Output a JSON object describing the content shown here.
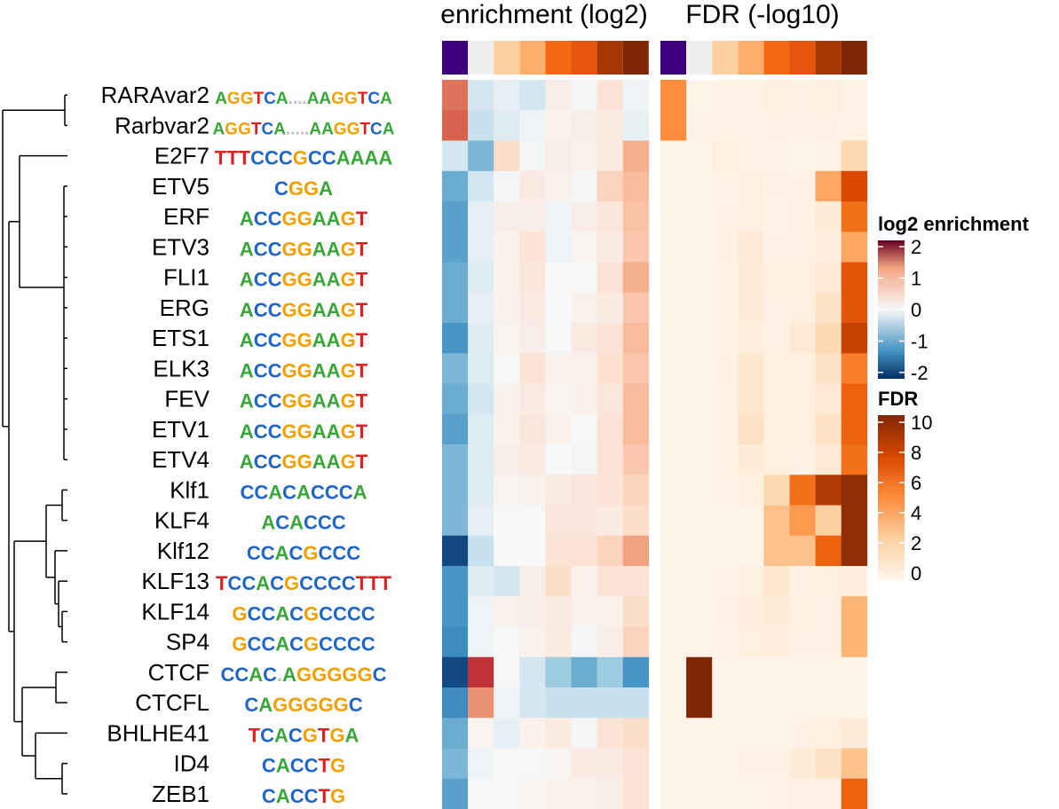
{
  "chart_data": {
    "type": "heatmap",
    "rows": [
      "RARAvar2",
      "Rarbvar2",
      "E2F7",
      "ETV5",
      "ERF",
      "ETV3",
      "FLI1",
      "ERG",
      "ETS1",
      "ELK3",
      "FEV",
      "ETV1",
      "ETV4",
      "Klf1",
      "KLF4",
      "Klf12",
      "KLF13",
      "KLF14",
      "SP4",
      "CTCF",
      "CTCFL",
      "BHLHE41",
      "ID4",
      "ZEB1"
    ],
    "motif_logos": [
      "AGGTCA....AAGGTCA",
      "AGGTCA.....AAGGTCA",
      "TTTCCCGCCAAAA",
      "CGGA",
      "ACCGGAAGT",
      "ACCGGAAGT",
      "ACCGGAAGT",
      "ACCGGAAGT",
      "ACCGGAAGT",
      "ACCGGAAGT",
      "ACCGGAAGT",
      "ACCGGAAGT",
      "ACCGGAAGT",
      "CCACACCCA",
      "ACACCC",
      "CCACGCCC",
      "TCCACGCCCCTTT",
      "GCCACGCCCC",
      "GCCACGCCCC",
      "CCAC.AGGGGGC",
      "CAGGGGGC",
      "TCACGTGA",
      "CACCTG",
      "CACCTG"
    ],
    "panels": [
      {
        "title": "enrichment (log2)",
        "columns": 8,
        "annotation_values": [
          -2,
          0,
          1,
          2,
          3,
          4,
          5,
          6
        ],
        "values": [
          [
            1.2,
            -0.4,
            -0.2,
            -0.4,
            0.15,
            -0.05,
            0.3,
            -0.1
          ],
          [
            1.3,
            -0.5,
            -0.3,
            -0.1,
            0.1,
            0.15,
            0.2,
            -0.15
          ],
          [
            -0.4,
            -1.0,
            0.4,
            -0.05,
            0.15,
            0.1,
            0.2,
            0.8
          ],
          [
            -1.1,
            -0.4,
            -0.05,
            0.2,
            0.1,
            -0.05,
            0.5,
            0.7
          ],
          [
            -1.2,
            -0.2,
            0.15,
            0.15,
            -0.1,
            0.15,
            0.25,
            0.65
          ],
          [
            -1.2,
            -0.2,
            0.1,
            0.3,
            -0.1,
            0.05,
            0.2,
            0.6
          ],
          [
            -1.1,
            -0.3,
            0.1,
            0.25,
            0.0,
            0.0,
            0.3,
            0.8
          ],
          [
            -1.1,
            -0.2,
            0.1,
            0.2,
            0.0,
            0.1,
            0.2,
            0.6
          ],
          [
            -1.3,
            -0.3,
            0.05,
            0.15,
            0.0,
            0.2,
            0.3,
            0.7
          ],
          [
            -1.0,
            -0.3,
            0.0,
            0.3,
            0.1,
            0.1,
            0.35,
            0.6
          ],
          [
            -1.1,
            -0.4,
            0.1,
            0.2,
            0.05,
            0.1,
            0.25,
            0.7
          ],
          [
            -1.2,
            -0.3,
            0.1,
            0.25,
            0.1,
            0.0,
            0.3,
            0.7
          ],
          [
            -1.0,
            -0.3,
            0.15,
            0.2,
            0.0,
            -0.05,
            0.3,
            0.6
          ],
          [
            -1.0,
            -0.3,
            0.05,
            0.1,
            0.2,
            0.25,
            0.3,
            0.5
          ],
          [
            -1.0,
            -0.2,
            0.0,
            0.0,
            0.25,
            0.25,
            0.2,
            0.4
          ],
          [
            -2.0,
            -0.5,
            0.0,
            0.0,
            0.3,
            0.3,
            0.5,
            0.9
          ],
          [
            -1.3,
            -0.3,
            -0.4,
            0.15,
            0.4,
            0.1,
            0.3,
            0.3
          ],
          [
            -1.3,
            -0.1,
            0.1,
            0.15,
            0.2,
            0.1,
            0.1,
            0.4
          ],
          [
            -1.4,
            -0.1,
            0.0,
            0.1,
            0.2,
            -0.05,
            0.15,
            0.5
          ],
          [
            -2.0,
            1.6,
            0.0,
            -0.4,
            -0.8,
            -1.1,
            -0.8,
            -1.3
          ],
          [
            -1.4,
            1.0,
            -0.1,
            -0.4,
            -0.5,
            -0.5,
            -0.5,
            -0.5
          ],
          [
            -1.1,
            0.05,
            -0.2,
            0.1,
            0.2,
            -0.05,
            0.3,
            0.4
          ],
          [
            -1.0,
            -0.1,
            0.0,
            0.0,
            0.05,
            0.2,
            0.2,
            0.3
          ],
          [
            -1.2,
            0.0,
            0.0,
            0.05,
            0.1,
            0.1,
            0.15,
            0.3
          ]
        ]
      },
      {
        "title": "FDR (-log10)",
        "columns": 8,
        "annotation_values": [
          -1,
          0,
          1,
          2,
          3,
          4,
          5,
          6
        ],
        "values": [
          [
            5.0,
            0.1,
            0.2,
            0.2,
            0.4,
            0.3,
            0.5,
            0.2
          ],
          [
            5.0,
            0.2,
            0.2,
            0.2,
            0.3,
            0.3,
            0.3,
            0.2
          ],
          [
            0.1,
            0.1,
            0.5,
            0.2,
            0.2,
            0.1,
            0.2,
            2.0
          ],
          [
            0.1,
            0.1,
            0.2,
            0.5,
            0.3,
            0.3,
            4.0,
            7.5
          ],
          [
            0.1,
            0.1,
            0.3,
            0.4,
            0.2,
            0.3,
            0.8,
            6.0
          ],
          [
            0.1,
            0.1,
            0.3,
            1.0,
            0.3,
            0.3,
            0.6,
            4.0
          ],
          [
            0.1,
            0.1,
            0.2,
            0.8,
            0.4,
            0.5,
            1.0,
            7.0
          ],
          [
            0.1,
            0.1,
            0.2,
            0.8,
            0.3,
            0.5,
            1.5,
            7.0
          ],
          [
            0.1,
            0.1,
            0.2,
            0.6,
            0.3,
            1.0,
            2.0,
            8.0
          ],
          [
            0.1,
            0.1,
            0.3,
            1.2,
            0.5,
            0.5,
            1.5,
            5.5
          ],
          [
            0.1,
            0.1,
            0.2,
            1.2,
            0.5,
            0.5,
            1.0,
            6.5
          ],
          [
            0.1,
            0.1,
            0.2,
            1.5,
            0.5,
            0.5,
            1.5,
            6.5
          ],
          [
            0.1,
            0.1,
            0.2,
            0.8,
            0.5,
            0.3,
            1.0,
            6.0
          ],
          [
            0.1,
            0.1,
            0.2,
            0.5,
            2.0,
            6.0,
            8.5,
            9.5
          ],
          [
            0.1,
            0.1,
            0.1,
            0.1,
            3.0,
            4.5,
            2.5,
            9.5
          ],
          [
            0.1,
            0.1,
            0.1,
            0.1,
            3.0,
            3.0,
            6.5,
            9.5
          ],
          [
            0.1,
            0.1,
            0.2,
            0.5,
            1.2,
            0.3,
            0.5,
            0.6
          ],
          [
            0.1,
            0.1,
            0.3,
            0.6,
            0.8,
            0.4,
            0.3,
            3.5
          ],
          [
            0.1,
            0.1,
            0.2,
            0.5,
            0.6,
            0.3,
            0.3,
            3.5
          ],
          [
            0.1,
            10.0,
            0.1,
            0.1,
            0.1,
            0.1,
            0.1,
            0.1
          ],
          [
            0.1,
            10.0,
            0.1,
            0.1,
            0.1,
            0.1,
            0.1,
            0.1
          ],
          [
            0.1,
            0.1,
            0.1,
            0.1,
            0.1,
            0.3,
            0.5,
            0.8
          ],
          [
            0.1,
            0.1,
            0.1,
            0.3,
            0.3,
            0.8,
            1.5,
            3.0
          ],
          [
            0.1,
            0.1,
            0.1,
            0.1,
            0.2,
            0.3,
            0.3,
            6.5
          ]
        ]
      }
    ],
    "legends": [
      {
        "title": "log2 enrichment",
        "ticks": [
          2,
          1,
          0,
          -1,
          -2
        ],
        "range": [
          -2.2,
          2.2
        ]
      },
      {
        "title": "FDR",
        "ticks": [
          10,
          8,
          6,
          4,
          2,
          0
        ],
        "range": [
          0,
          10
        ]
      }
    ],
    "annotation_colors": [
      "#3f007d",
      "#efefef",
      "#fdd0a2",
      "#fdae6b",
      "#f16913",
      "#e6550d",
      "#a63603",
      "#7f2704"
    ],
    "colors": {
      "diverging": [
        "#053061",
        "#2166ac",
        "#4393c3",
        "#92c5de",
        "#d1e5f0",
        "#f7f7f7",
        "#fddbc7",
        "#f4a582",
        "#d6604d",
        "#b2182b",
        "#67001f"
      ],
      "sequential": [
        "#fff5eb",
        "#fee6ce",
        "#fdd0a2",
        "#fdae6b",
        "#fd8d3c",
        "#f16913",
        "#d94801",
        "#a63603",
        "#7f2704"
      ]
    },
    "dendrogram_merges": [
      [
        "RARAvar2",
        "Rarbvar2"
      ],
      [
        "ETV5",
        "ERF",
        "ETV3",
        "FLI1",
        "ERG",
        "ETS1",
        "ELK3",
        "FEV",
        "ETV1",
        "ETV4"
      ],
      [
        "Klf1",
        "KLF4"
      ],
      [
        "KLF13",
        "KLF14",
        "SP4"
      ],
      [
        "Klf12",
        "KLF13",
        "KLF14",
        "SP4"
      ],
      [
        "CTCF",
        "CTCFL"
      ],
      [
        "ID4",
        "ZEB1"
      ],
      [
        "BHLHE41",
        "ID4",
        "ZEB1"
      ]
    ]
  }
}
